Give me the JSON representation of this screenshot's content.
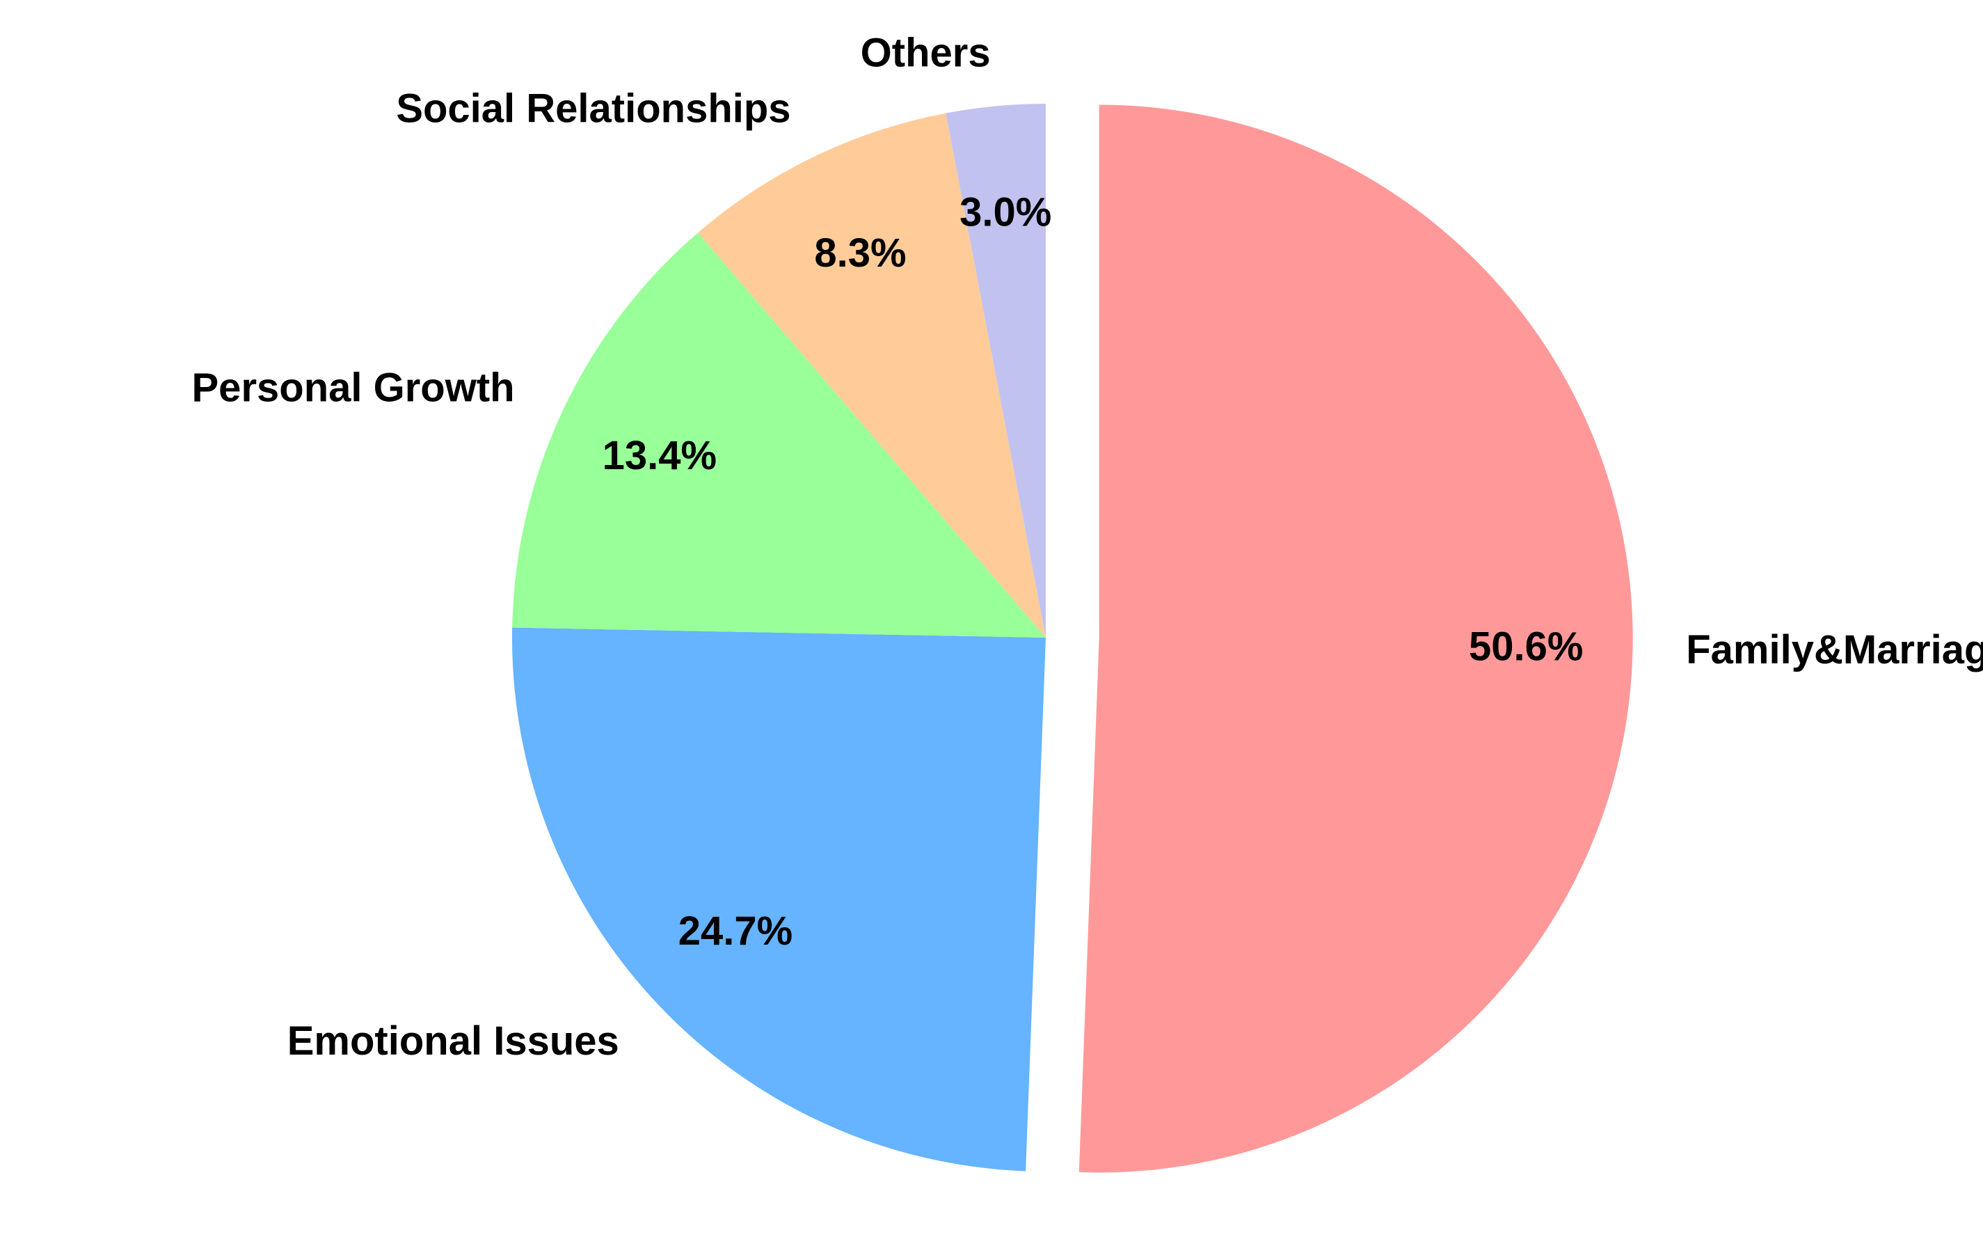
{
  "chart_data": {
    "type": "pie",
    "title": "",
    "start_angle_deg": 90,
    "direction": "clockwise",
    "slices": [
      {
        "label": "Family&Marriage",
        "value": 50.6,
        "pct_label": "50.6%",
        "color": "#ff9999",
        "exploded": true
      },
      {
        "label": "Emotional Issues",
        "value": 24.7,
        "pct_label": "24.7%",
        "color": "#66b3ff",
        "exploded": false
      },
      {
        "label": "Personal Growth",
        "value": 13.4,
        "pct_label": "13.4%",
        "color": "#99ff99",
        "exploded": false
      },
      {
        "label": "Social Relationships",
        "value": 8.3,
        "pct_label": "8.3%",
        "color": "#ffcc99",
        "exploded": false
      },
      {
        "label": "Others",
        "value": 3.0,
        "pct_label": "3.0%",
        "color": "#c2c2f0",
        "exploded": false
      }
    ]
  }
}
